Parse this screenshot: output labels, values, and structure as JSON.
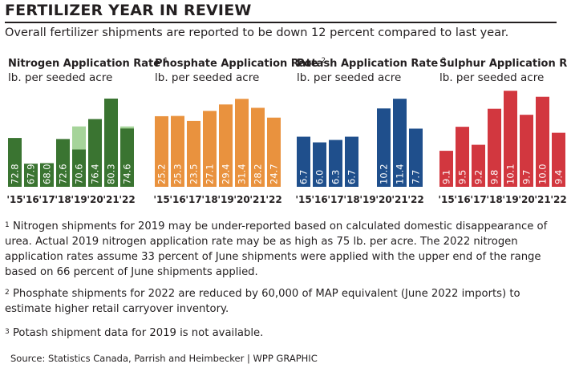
{
  "title": "FERTILIZER YEAR IN REVIEW",
  "subtitle": "Overall fertilizer shipments are reported to be down 12 percent compared to last year.",
  "chart_data": [
    {
      "type": "bar",
      "title": "Nitrogen Application Rate",
      "title_sup": "1",
      "subtitle": "lb. per seeded acre",
      "color": "#3a7431",
      "light_color": "#a6d49a",
      "categories": [
        "'15",
        "'16",
        "'17",
        "'18",
        "'19",
        "'20",
        "'21",
        "'22"
      ],
      "values": [
        72.8,
        67.9,
        68.0,
        72.6,
        70.6,
        76.4,
        80.3,
        74.6
      ],
      "value_labels": [
        "72.8",
        "67.9",
        "68.0",
        "72.6",
        "70.6",
        "76.4",
        "80.3",
        "74.6"
      ],
      "upper_range": [
        null,
        null,
        null,
        null,
        75.0,
        null,
        null,
        75.0
      ],
      "ylim": [
        63.5,
        83.5
      ]
    },
    {
      "type": "bar",
      "title": "Phosphate Application Rate",
      "title_sup": "2",
      "subtitle": "lb. per seeded acre",
      "color": "#e9923e",
      "categories": [
        "'15",
        "'16",
        "'17",
        "'18",
        "'19",
        "'20",
        "'21",
        "'22"
      ],
      "values": [
        25.2,
        25.3,
        23.5,
        27.1,
        29.4,
        31.4,
        28.2,
        24.7
      ],
      "value_labels": [
        "25.2",
        "25.3",
        "23.5",
        "27.1",
        "29.4",
        "31.4",
        "28.2",
        "24.7"
      ],
      "ylim": [
        0,
        37.5
      ]
    },
    {
      "type": "bar",
      "title": "Potash Application Rate",
      "title_sup": "3",
      "subtitle": "lb. per seeded acre",
      "color": "#1f4f8c",
      "categories": [
        "'15",
        "'16",
        "'17",
        "'18",
        "'19",
        "'20",
        "'21",
        "'22"
      ],
      "values": [
        6.7,
        6.0,
        6.3,
        6.7,
        null,
        10.2,
        11.4,
        7.7
      ],
      "value_labels": [
        "6.7",
        "6.0",
        "6.3",
        "6.7",
        "",
        "10.2",
        "11.4",
        "7.7"
      ],
      "ylim": [
        0.5,
        13.5
      ]
    },
    {
      "type": "bar",
      "title": "Sulphur Application Rate",
      "title_sup": "",
      "subtitle": "lb. per seeded acre",
      "color": "#d2373f",
      "categories": [
        "'15",
        "'16",
        "'17",
        "'18",
        "'19",
        "'20",
        "'21",
        "'22"
      ],
      "values": [
        9.1,
        9.5,
        9.2,
        9.8,
        10.1,
        9.7,
        10.0,
        9.4
      ],
      "value_labels": [
        "9.1",
        "9.5",
        "9.2",
        "9.8",
        "10.1",
        "9.7",
        "10.0",
        "9.4"
      ],
      "ylim": [
        8.5,
        10.25
      ]
    }
  ],
  "footnotes": {
    "fn1_mark": "1",
    "fn1": "Nitrogen shipments for 2019 may be under-reported based on calculated domestic disappearance of urea. Actual 2019 nitrogen application rate may be as high as 75 lb. per acre. The 2022 nitrogen application rates assume 33 percent of June shipments were applied with the upper end of the range based on 66 percent of June shipments applied.",
    "fn2_mark": "2",
    "fn2": "Phosphate shipments for 2022 are reduced by 60,000 of MAP equivalent (June 2022 imports) to estimate higher retail carryover inventory.",
    "fn3_mark": "3",
    "fn3": "Potash shipment data for 2019 is not available."
  },
  "source": "Source: Statistics Canada, Parrish and Heimbecker  |  WPP GRAPHIC"
}
